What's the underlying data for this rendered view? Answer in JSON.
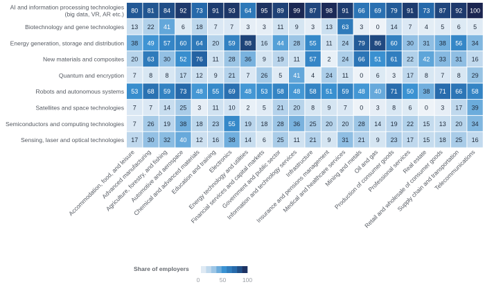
{
  "chart_data": {
    "type": "heatmap",
    "title": "",
    "rows": [
      "AI and information processing technologies|(big data, VR, AR etc.)",
      "Biotechnology and gene technologies",
      "Energy generation, storage and distribution",
      "New materials and composites",
      "Quantum and encryption",
      "Robots and autonomous systems",
      "Satellites and space technologies",
      "Semiconductors and computing technologies",
      "Sensing, laser and optical technologies"
    ],
    "columns": [
      "Accommodation, food, and leisure",
      "Advanced manufacturing",
      "Agriculture, forestry, and fishing",
      "Automotive and aerospace",
      "Chemical and advanced materials",
      "Education and training",
      "Electronics",
      "Energy technology and utilities",
      "Financial services and capital markets",
      "Government and public sector",
      "Information and technology services",
      "Infrastructure",
      "Insurance and pensions management",
      "Medical and healthcare services",
      "Mining and metals",
      "Oil and gas",
      "Production of consumer goods",
      "Professional services",
      "Real estate",
      "Retail and wholesale of consumer goods",
      "Supply chain and transportation",
      "Telecommunications"
    ],
    "values": [
      [
        80,
        81,
        84,
        92,
        73,
        91,
        93,
        64,
        95,
        89,
        99,
        87,
        98,
        91,
        66,
        69,
        79,
        91,
        73,
        87,
        92,
        100
      ],
      [
        13,
        22,
        41,
        6,
        18,
        7,
        7,
        3,
        3,
        11,
        9,
        3,
        13,
        63,
        3,
        0,
        14,
        7,
        4,
        5,
        6,
        5
      ],
      [
        38,
        49,
        57,
        60,
        64,
        20,
        59,
        88,
        16,
        44,
        28,
        55,
        11,
        24,
        79,
        86,
        60,
        30,
        31,
        38,
        56,
        34
      ],
      [
        20,
        63,
        30,
        52,
        76,
        11,
        28,
        36,
        9,
        19,
        11,
        57,
        2,
        24,
        66,
        51,
        61,
        22,
        42,
        33,
        31,
        16
      ],
      [
        7,
        8,
        8,
        17,
        12,
        9,
        21,
        7,
        26,
        5,
        41,
        4,
        24,
        11,
        0,
        6,
        3,
        17,
        8,
        7,
        8,
        29
      ],
      [
        53,
        68,
        59,
        73,
        48,
        55,
        69,
        48,
        53,
        58,
        48,
        58,
        51,
        59,
        48,
        40,
        71,
        50,
        38,
        71,
        66,
        58
      ],
      [
        7,
        7,
        14,
        25,
        3,
        11,
        10,
        2,
        5,
        21,
        20,
        8,
        9,
        7,
        0,
        3,
        8,
        6,
        0,
        3,
        17,
        39
      ],
      [
        7,
        26,
        19,
        38,
        18,
        23,
        55,
        19,
        18,
        28,
        36,
        25,
        20,
        20,
        28,
        14,
        19,
        22,
        15,
        13,
        20,
        34
      ],
      [
        17,
        30,
        32,
        40,
        12,
        16,
        38,
        14,
        6,
        25,
        11,
        21,
        9,
        31,
        21,
        9,
        23,
        17,
        15,
        18,
        25,
        16
      ]
    ],
    "value_range": [
      0,
      100
    ],
    "colorscale": [
      "#eef3f8",
      "#a9cce8",
      "#3b92d2",
      "#2465a6",
      "#1b2550"
    ],
    "legend": {
      "title": "Share of employers",
      "ticks": [
        "0",
        "50",
        "100"
      ],
      "placement": "bottom-left"
    }
  }
}
